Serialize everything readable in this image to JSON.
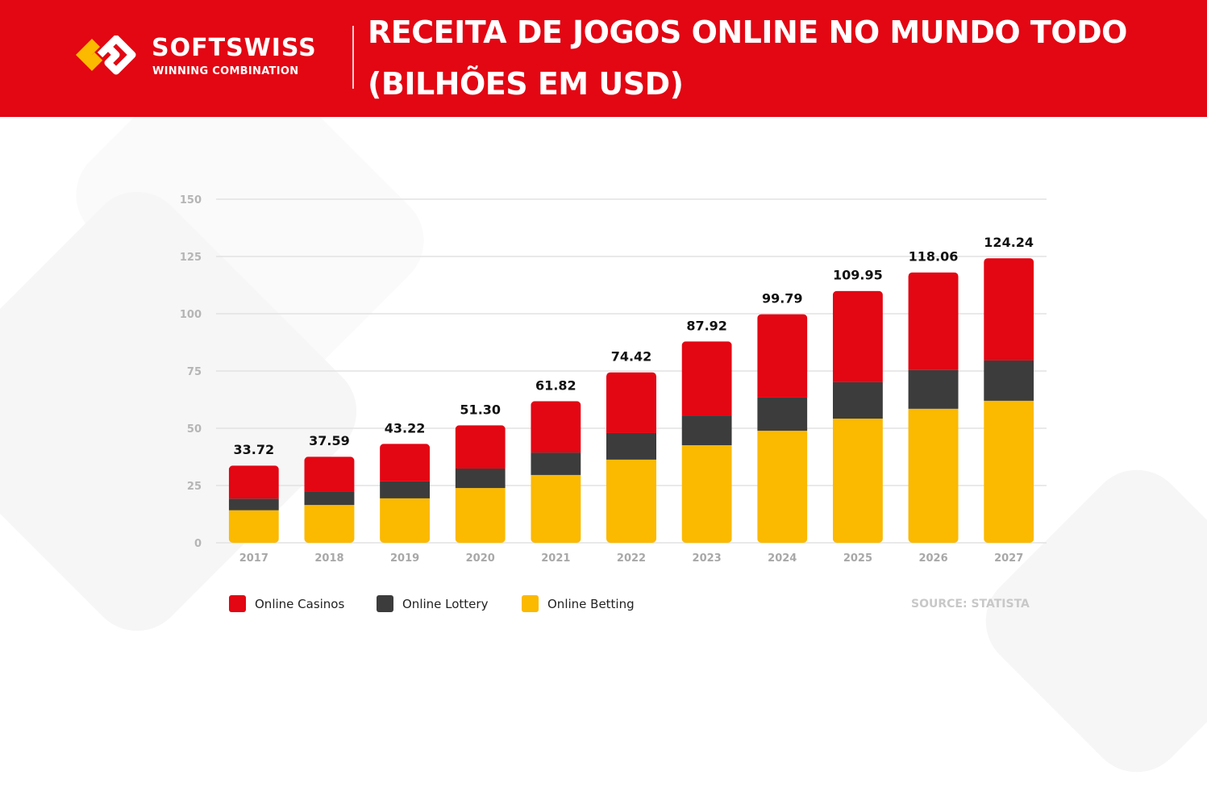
{
  "header": {
    "brand": "SOFTSWISS",
    "tagline": "WINNING COMBINATION",
    "title_line1": "RECEITA DE JOGOS ONLINE NO MUNDO TODO",
    "title_line2": "(BILHÕES EM USD)"
  },
  "source": "SOURCE: STATISTA",
  "colors": {
    "brand_red": "#e30613",
    "casinos": "#e30613",
    "lottery": "#3c3c3c",
    "betting": "#fbb900"
  },
  "chart_data": {
    "type": "bar",
    "stacked": true,
    "categories": [
      "2017",
      "2018",
      "2019",
      "2020",
      "2021",
      "2022",
      "2023",
      "2024",
      "2025",
      "2026",
      "2027"
    ],
    "series": [
      {
        "name": "Online Betting",
        "color": "#fbb900",
        "values": [
          14.2,
          16.5,
          19.4,
          23.9,
          29.6,
          36.3,
          42.6,
          48.9,
          54.2,
          58.5,
          62.0
        ]
      },
      {
        "name": "Online Lottery",
        "color": "#3c3c3c",
        "values": [
          5.1,
          6.0,
          7.4,
          8.5,
          9.8,
          11.6,
          13.0,
          14.5,
          15.9,
          16.9,
          17.6
        ]
      },
      {
        "name": "Online Casinos",
        "color": "#e30613",
        "values": [
          14.42,
          15.09,
          16.42,
          18.9,
          22.42,
          26.52,
          32.32,
          36.39,
          39.85,
          42.66,
          44.64
        ]
      }
    ],
    "totals": [
      "33.72",
      "37.59",
      "43.22",
      "51.30",
      "61.82",
      "74.42",
      "87.92",
      "99.79",
      "109.95",
      "118.06",
      "124.24"
    ],
    "yticks": [
      "0",
      "25",
      "50",
      "75",
      "100",
      "125",
      "150"
    ],
    "ylim": [
      0,
      150
    ],
    "grid": true,
    "legend": "bottom-left"
  }
}
